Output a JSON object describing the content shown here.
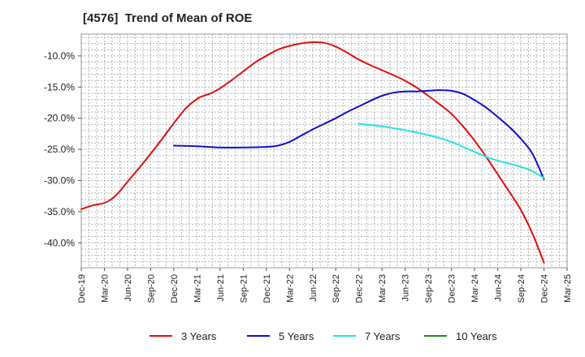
{
  "chart_data": {
    "type": "line",
    "title": "[4576]  Trend of Mean of ROE",
    "xlabel": "",
    "ylabel": "",
    "x_categories": [
      "Dec-19",
      "Mar-20",
      "Jun-20",
      "Sep-20",
      "Dec-20",
      "Mar-21",
      "Jun-21",
      "Sep-21",
      "Dec-21",
      "Mar-22",
      "Jun-22",
      "Sep-22",
      "Dec-22",
      "Mar-23",
      "Jun-23",
      "Sep-23",
      "Dec-23",
      "Mar-24",
      "Jun-24",
      "Sep-24",
      "Dec-24",
      "Mar-25"
    ],
    "y_ticks": [
      "-10.0%",
      "-15.0%",
      "-20.0%",
      "-25.0%",
      "-30.0%",
      "-35.0%",
      "-40.0%"
    ],
    "ylim": [
      -44.0,
      -6.5
    ],
    "grid": true,
    "legend_position": "bottom",
    "series": [
      {
        "name": "3 Years",
        "color": "#dd1111",
        "points": [
          [
            0,
            -34.6
          ],
          [
            0.5,
            -34.0
          ],
          [
            1,
            -33.6
          ],
          [
            1.3,
            -33.0
          ],
          [
            1.6,
            -32.0
          ],
          [
            2,
            -30.2
          ],
          [
            2.5,
            -28.0
          ],
          [
            3,
            -25.7
          ],
          [
            3.5,
            -23.3
          ],
          [
            4,
            -20.8
          ],
          [
            4.5,
            -18.5
          ],
          [
            5,
            -16.9
          ],
          [
            5.3,
            -16.4
          ],
          [
            5.6,
            -16.0
          ],
          [
            6,
            -15.2
          ],
          [
            6.5,
            -13.9
          ],
          [
            7,
            -12.5
          ],
          [
            7.5,
            -11.1
          ],
          [
            8,
            -10.0
          ],
          [
            8.5,
            -9.0
          ],
          [
            9,
            -8.4
          ],
          [
            9.5,
            -8.0
          ],
          [
            10,
            -7.8
          ],
          [
            10.5,
            -7.9
          ],
          [
            11,
            -8.5
          ],
          [
            11.5,
            -9.5
          ],
          [
            12,
            -10.6
          ],
          [
            12.5,
            -11.5
          ],
          [
            13,
            -12.3
          ],
          [
            13.5,
            -13.1
          ],
          [
            14,
            -14.0
          ],
          [
            14.5,
            -15.1
          ],
          [
            15,
            -16.4
          ],
          [
            15.5,
            -17.8
          ],
          [
            16,
            -19.3
          ],
          [
            16.5,
            -21.3
          ],
          [
            17,
            -23.6
          ],
          [
            17.5,
            -26.2
          ],
          [
            18,
            -29.0
          ],
          [
            18.5,
            -31.8
          ],
          [
            19,
            -34.7
          ],
          [
            19.5,
            -38.5
          ],
          [
            20,
            -43.2
          ]
        ]
      },
      {
        "name": "5 Years",
        "color": "#1111cc",
        "points": [
          [
            4,
            -24.4
          ],
          [
            5,
            -24.5
          ],
          [
            6,
            -24.7
          ],
          [
            7,
            -24.7
          ],
          [
            8,
            -24.6
          ],
          [
            8.5,
            -24.4
          ],
          [
            9,
            -23.8
          ],
          [
            9.5,
            -22.8
          ],
          [
            10,
            -21.8
          ],
          [
            10.5,
            -20.9
          ],
          [
            11,
            -20.0
          ],
          [
            11.5,
            -19.0
          ],
          [
            12,
            -18.1
          ],
          [
            12.5,
            -17.2
          ],
          [
            13,
            -16.4
          ],
          [
            13.5,
            -15.9
          ],
          [
            14,
            -15.7
          ],
          [
            14.5,
            -15.7
          ],
          [
            15,
            -15.6
          ],
          [
            15.5,
            -15.5
          ],
          [
            16,
            -15.6
          ],
          [
            16.5,
            -16.1
          ],
          [
            17,
            -17.1
          ],
          [
            17.5,
            -18.3
          ],
          [
            18,
            -19.8
          ],
          [
            18.5,
            -21.4
          ],
          [
            19,
            -23.3
          ],
          [
            19.5,
            -25.7
          ],
          [
            20,
            -29.8
          ]
        ]
      },
      {
        "name": "7 Years",
        "color": "#22e5e5",
        "points": [
          [
            12,
            -20.9
          ],
          [
            12.5,
            -21.1
          ],
          [
            13,
            -21.3
          ],
          [
            13.5,
            -21.6
          ],
          [
            14,
            -21.9
          ],
          [
            14.5,
            -22.3
          ],
          [
            15,
            -22.7
          ],
          [
            15.5,
            -23.2
          ],
          [
            16,
            -23.8
          ],
          [
            16.5,
            -24.6
          ],
          [
            17,
            -25.4
          ],
          [
            17.5,
            -26.2
          ],
          [
            18,
            -26.8
          ],
          [
            18.5,
            -27.3
          ],
          [
            19,
            -27.8
          ],
          [
            19.5,
            -28.5
          ],
          [
            20,
            -29.6
          ]
        ]
      },
      {
        "name": "10 Years",
        "color": "#1a8c1a",
        "points": []
      }
    ]
  }
}
